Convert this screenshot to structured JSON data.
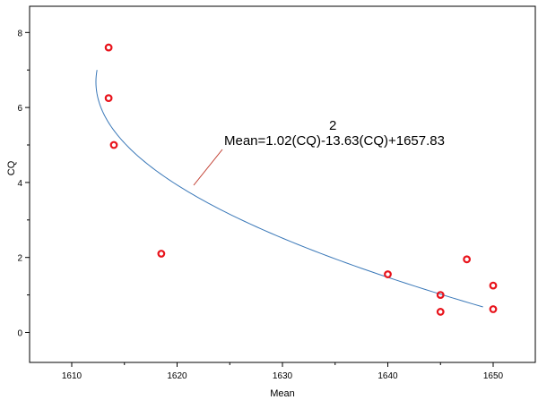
{
  "chart_data": {
    "type": "scatter",
    "title": "",
    "xlabel": "Mean",
    "ylabel": "CQ",
    "xlim": [
      1606,
      1654
    ],
    "ylim": [
      -0.8,
      8.7
    ],
    "x_ticks": [
      1610,
      1620,
      1630,
      1640,
      1650
    ],
    "y_ticks": [
      0,
      2,
      4,
      6,
      8
    ],
    "x_minor_ticks": [
      1615,
      1625,
      1635,
      1645
    ],
    "y_minor_ticks": [
      1,
      3,
      5,
      7
    ],
    "grid": false,
    "points": [
      {
        "x": 1613.5,
        "y": 7.6
      },
      {
        "x": 1613.5,
        "y": 6.25
      },
      {
        "x": 1614.0,
        "y": 5.0
      },
      {
        "x": 1618.5,
        "y": 2.1
      },
      {
        "x": 1640.0,
        "y": 1.55
      },
      {
        "x": 1645.0,
        "y": 1.0
      },
      {
        "x": 1645.0,
        "y": 0.55
      },
      {
        "x": 1647.5,
        "y": 1.95
      },
      {
        "x": 1650.0,
        "y": 1.25
      },
      {
        "x": 1650.0,
        "y": 0.62
      }
    ],
    "fit": {
      "equation_main": "Mean=1.02(CQ)-13.63(CQ)+1657.83",
      "exponent": "2",
      "coefficients": [
        1.02,
        -13.63,
        1657.83
      ],
      "cq_range": [
        0.68,
        7.0
      ]
    },
    "colors": {
      "points": "#e8131b",
      "fit_line": "#3a78b8",
      "leader_line": "#c0392b",
      "axes": "#000000"
    }
  }
}
